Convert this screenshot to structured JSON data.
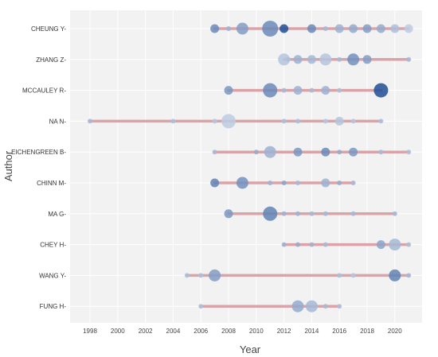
{
  "chart_data": {
    "type": "scatter",
    "subtype": "author production over time (timeline bubble chart)",
    "xlabel": "Year",
    "ylabel": "Author",
    "xlim": [
      1997,
      2021.5
    ],
    "xticks": [
      "1998",
      "2000",
      "2002",
      "2004",
      "2006",
      "2008",
      "2010",
      "2012",
      "2014",
      "2016",
      "2018",
      "2020"
    ],
    "grid": true,
    "colors": {
      "panel_background": "#f2f2f2",
      "grid": "#ffffff",
      "timeline": "#d9a3a8",
      "bubble_light": "#c5d3e6",
      "bubble_dark": "#1f4f96"
    },
    "authors": [
      {
        "name": "CHEUNG Y",
        "start": 2007,
        "end": 2021,
        "points": [
          {
            "year": 2007,
            "size": 2,
            "intensity": 0.55
          },
          {
            "year": 2008,
            "size": 1,
            "intensity": 0.25
          },
          {
            "year": 2009,
            "size": 3,
            "intensity": 0.4
          },
          {
            "year": 2011,
            "size": 5,
            "intensity": 0.55
          },
          {
            "year": 2012,
            "size": 2,
            "intensity": 1.0
          },
          {
            "year": 2014,
            "size": 2,
            "intensity": 0.55
          },
          {
            "year": 2015,
            "size": 1,
            "intensity": 0.2
          },
          {
            "year": 2016,
            "size": 2,
            "intensity": 0.25
          },
          {
            "year": 2017,
            "size": 2,
            "intensity": 0.3
          },
          {
            "year": 2018,
            "size": 2,
            "intensity": 0.4
          },
          {
            "year": 2019,
            "size": 2,
            "intensity": 0.3
          },
          {
            "year": 2020,
            "size": 2,
            "intensity": 0.15
          },
          {
            "year": 2021,
            "size": 2,
            "intensity": 0.05
          }
        ]
      },
      {
        "name": "ZHANG Z",
        "start": 2012,
        "end": 2021,
        "points": [
          {
            "year": 2012,
            "size": 3,
            "intensity": 0.1
          },
          {
            "year": 2012.3,
            "size": 1,
            "intensity": 0.15
          },
          {
            "year": 2013,
            "size": 2,
            "intensity": 0.25
          },
          {
            "year": 2014,
            "size": 2,
            "intensity": 0.2
          },
          {
            "year": 2015,
            "size": 3,
            "intensity": 0.1
          },
          {
            "year": 2016,
            "size": 1,
            "intensity": 0.2
          },
          {
            "year": 2017,
            "size": 3,
            "intensity": 0.5
          },
          {
            "year": 2018,
            "size": 2,
            "intensity": 0.4
          },
          {
            "year": 2021,
            "size": 1,
            "intensity": 0.2
          }
        ]
      },
      {
        "name": "MCCAULEY R",
        "start": 2008,
        "end": 2019,
        "points": [
          {
            "year": 2008,
            "size": 2,
            "intensity": 0.45
          },
          {
            "year": 2011,
            "size": 4,
            "intensity": 0.55
          },
          {
            "year": 2012,
            "size": 1,
            "intensity": 0.2
          },
          {
            "year": 2013,
            "size": 2,
            "intensity": 0.25
          },
          {
            "year": 2014,
            "size": 1,
            "intensity": 0.2
          },
          {
            "year": 2015,
            "size": 2,
            "intensity": 0.25
          },
          {
            "year": 2016,
            "size": 1,
            "intensity": 0.15
          },
          {
            "year": 2019,
            "size": 4,
            "intensity": 1.0
          }
        ]
      },
      {
        "name": "NA N",
        "start": 1998,
        "end": 2019,
        "points": [
          {
            "year": 1998,
            "size": 1,
            "intensity": 0.2
          },
          {
            "year": 2004,
            "size": 1,
            "intensity": 0.15
          },
          {
            "year": 2007,
            "size": 1,
            "intensity": 0.1
          },
          {
            "year": 2008,
            "size": 4,
            "intensity": 0.05
          },
          {
            "year": 2012,
            "size": 1,
            "intensity": 0.15
          },
          {
            "year": 2013,
            "size": 1,
            "intensity": 0.15
          },
          {
            "year": 2015,
            "size": 1,
            "intensity": 0.1
          },
          {
            "year": 2016,
            "size": 2,
            "intensity": 0.1
          },
          {
            "year": 2017,
            "size": 1,
            "intensity": 0.1
          },
          {
            "year": 2019,
            "size": 1,
            "intensity": 0.15
          }
        ]
      },
      {
        "name": "EICHENGREEN B",
        "start": 2007,
        "end": 2021,
        "points": [
          {
            "year": 2007,
            "size": 1,
            "intensity": 0.2
          },
          {
            "year": 2010,
            "size": 1,
            "intensity": 0.3
          },
          {
            "year": 2011,
            "size": 3,
            "intensity": 0.25
          },
          {
            "year": 2013,
            "size": 2,
            "intensity": 0.45
          },
          {
            "year": 2015,
            "size": 2,
            "intensity": 0.55
          },
          {
            "year": 2016,
            "size": 1,
            "intensity": 0.3
          },
          {
            "year": 2017,
            "size": 2,
            "intensity": 0.45
          },
          {
            "year": 2019,
            "size": 1,
            "intensity": 0.2
          },
          {
            "year": 2021,
            "size": 1,
            "intensity": 0.15
          }
        ]
      },
      {
        "name": "CHINN M",
        "start": 2007,
        "end": 2017,
        "points": [
          {
            "year": 2007,
            "size": 2,
            "intensity": 0.6
          },
          {
            "year": 2009,
            "size": 3,
            "intensity": 0.5
          },
          {
            "year": 2011,
            "size": 1,
            "intensity": 0.25
          },
          {
            "year": 2012,
            "size": 1,
            "intensity": 0.35
          },
          {
            "year": 2013,
            "size": 1,
            "intensity": 0.2
          },
          {
            "year": 2015,
            "size": 2,
            "intensity": 0.25
          },
          {
            "year": 2016,
            "size": 1,
            "intensity": 0.3
          },
          {
            "year": 2017,
            "size": 1,
            "intensity": 0.2
          }
        ]
      },
      {
        "name": "MA G",
        "start": 2008,
        "end": 2020,
        "points": [
          {
            "year": 2008,
            "size": 2,
            "intensity": 0.45
          },
          {
            "year": 2011,
            "size": 4,
            "intensity": 0.6
          },
          {
            "year": 2012,
            "size": 1,
            "intensity": 0.25
          },
          {
            "year": 2013,
            "size": 1,
            "intensity": 0.25
          },
          {
            "year": 2014,
            "size": 1,
            "intensity": 0.2
          },
          {
            "year": 2015,
            "size": 1,
            "intensity": 0.2
          },
          {
            "year": 2017,
            "size": 1,
            "intensity": 0.2
          },
          {
            "year": 2020,
            "size": 1,
            "intensity": 0.2
          }
        ]
      },
      {
        "name": "CHEY H",
        "start": 2012,
        "end": 2021,
        "points": [
          {
            "year": 2012,
            "size": 1,
            "intensity": 0.25
          },
          {
            "year": 2013,
            "size": 1,
            "intensity": 0.3
          },
          {
            "year": 2014,
            "size": 1,
            "intensity": 0.25
          },
          {
            "year": 2015,
            "size": 1,
            "intensity": 0.2
          },
          {
            "year": 2019,
            "size": 2,
            "intensity": 0.35
          },
          {
            "year": 2020,
            "size": 3,
            "intensity": 0.2
          },
          {
            "year": 2021,
            "size": 1,
            "intensity": 0.15
          }
        ]
      },
      {
        "name": "WANG Y",
        "start": 2005,
        "end": 2021,
        "points": [
          {
            "year": 2005,
            "size": 1,
            "intensity": 0.15
          },
          {
            "year": 2006,
            "size": 1,
            "intensity": 0.15
          },
          {
            "year": 2007,
            "size": 3,
            "intensity": 0.4
          },
          {
            "year": 2016,
            "size": 1,
            "intensity": 0.15
          },
          {
            "year": 2017,
            "size": 1,
            "intensity": 0.1
          },
          {
            "year": 2020,
            "size": 3,
            "intensity": 0.6
          },
          {
            "year": 2021,
            "size": 1,
            "intensity": 0.2
          }
        ]
      },
      {
        "name": "FUNG H",
        "start": 2006,
        "end": 2016,
        "points": [
          {
            "year": 2006,
            "size": 1,
            "intensity": 0.15
          },
          {
            "year": 2013,
            "size": 3,
            "intensity": 0.3
          },
          {
            "year": 2014,
            "size": 3,
            "intensity": 0.2
          },
          {
            "year": 2015,
            "size": 1,
            "intensity": 0.2
          },
          {
            "year": 2016,
            "size": 1,
            "intensity": 0.15
          }
        ]
      }
    ]
  }
}
